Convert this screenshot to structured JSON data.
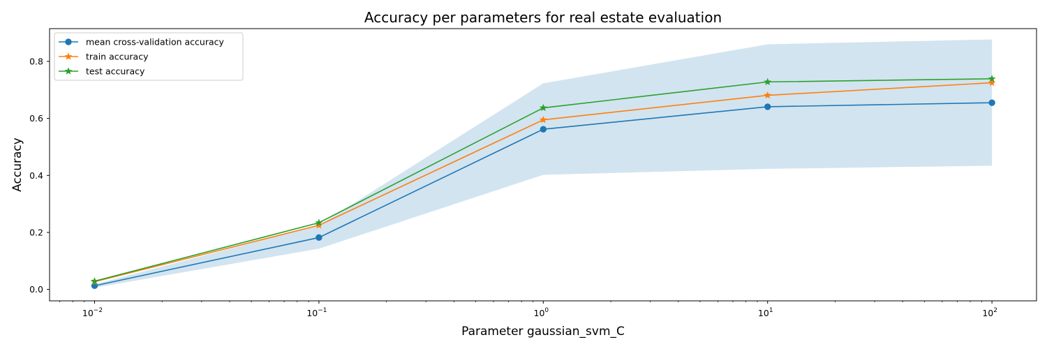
{
  "chart_data": {
    "type": "line",
    "title": "Accuracy per parameters for real estate evaluation",
    "xlabel": "Parameter gaussian_svm_C",
    "ylabel": "Accuracy",
    "x_scale": "log",
    "x": [
      0.01,
      0.1,
      1,
      10,
      100
    ],
    "xlim": [
      0.0063,
      158
    ],
    "ylim": [
      -0.04,
      0.915
    ],
    "x_ticks": [
      {
        "value": 0.01,
        "base": "10",
        "exp": "−2"
      },
      {
        "value": 0.1,
        "base": "10",
        "exp": "−1"
      },
      {
        "value": 1,
        "base": "10",
        "exp": "0"
      },
      {
        "value": 10,
        "base": "10",
        "exp": "1"
      },
      {
        "value": 100,
        "base": "10",
        "exp": "2"
      }
    ],
    "y_ticks": [
      {
        "value": 0.0,
        "label": "0.0"
      },
      {
        "value": 0.2,
        "label": "0.2"
      },
      {
        "value": 0.4,
        "label": "0.4"
      },
      {
        "value": 0.6,
        "label": "0.6"
      },
      {
        "value": 0.8,
        "label": "0.8"
      }
    ],
    "band": {
      "upper": [
        0.018,
        0.225,
        0.723,
        0.86,
        0.877
      ],
      "lower": [
        0.006,
        0.143,
        0.402,
        0.423,
        0.434
      ],
      "color": "#1f77b4",
      "opacity": 0.2
    },
    "series": [
      {
        "name": "mean cross-validation accuracy",
        "values": [
          0.013,
          0.182,
          0.562,
          0.641,
          0.655
        ],
        "color": "#1f77b4",
        "marker": "circle"
      },
      {
        "name": "train accuracy",
        "values": [
          0.027,
          0.225,
          0.595,
          0.681,
          0.725
        ],
        "color": "#ff7f0e",
        "marker": "star"
      },
      {
        "name": "test accuracy",
        "values": [
          0.029,
          0.234,
          0.637,
          0.728,
          0.739
        ],
        "color": "#2ca02c",
        "marker": "star"
      }
    ],
    "legend_position": "top-left",
    "grid": false
  }
}
